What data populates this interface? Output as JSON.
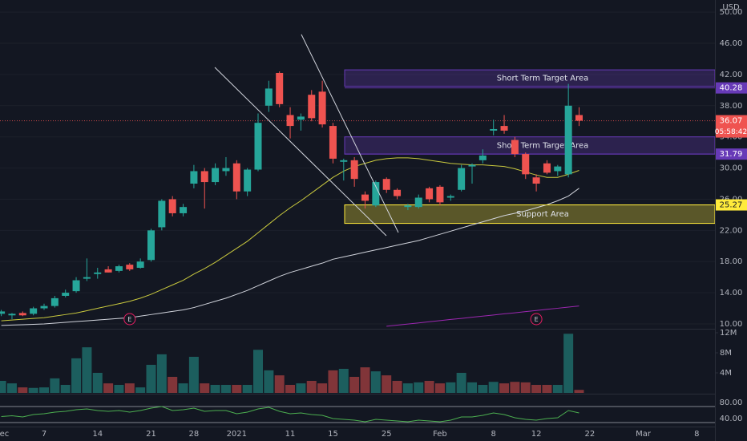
{
  "chart_data": [
    {
      "type": "candlestick",
      "currency": "USD",
      "categories": [
        "Dec",
        null,
        null,
        null,
        "7",
        null,
        null,
        null,
        null,
        "14",
        null,
        null,
        null,
        null,
        "21",
        null,
        null,
        null,
        "28",
        null,
        null,
        null,
        "2021",
        null,
        null,
        null,
        null,
        "11",
        null,
        null,
        null,
        "15",
        null,
        null,
        null,
        null,
        "25",
        null,
        null,
        null,
        null,
        "Feb",
        null,
        null,
        null,
        null,
        "8",
        null,
        null,
        null,
        "12",
        null,
        null,
        null,
        null,
        "22",
        null,
        null,
        null,
        null,
        "Mar",
        null,
        null,
        null,
        null,
        "8",
        null,
        null,
        null,
        null
      ],
      "open": [
        11.3,
        11.1,
        11.4,
        11.3,
        12.0,
        12.3,
        13.6,
        14.2,
        15.8,
        16.4,
        17.0,
        16.8,
        17.6,
        17.2,
        18.2,
        22.4,
        26.0,
        24.2,
        28.0,
        29.6,
        28.2,
        29.6,
        30.6,
        27.0,
        29.8,
        38.0,
        42.2,
        36.8,
        36.2,
        39.4,
        39.8,
        35.4,
        30.8,
        31.0,
        26.6,
        25.2,
        28.6,
        27.2,
        25.0,
        25.0,
        27.4,
        27.6,
        26.2,
        27.2,
        30.2,
        31.0,
        34.8,
        35.4,
        33.6,
        31.8,
        28.8,
        30.6,
        29.6,
        29.2,
        36.8,
        null,
        null,
        null,
        null,
        null,
        null,
        null,
        null,
        null,
        null,
        null,
        null,
        null,
        null,
        null
      ],
      "high": [
        11.8,
        11.4,
        11.6,
        12.2,
        12.6,
        13.6,
        14.4,
        16.0,
        18.4,
        17.2,
        17.4,
        17.6,
        17.8,
        18.4,
        22.2,
        26.0,
        26.4,
        25.4,
        30.4,
        30.0,
        30.6,
        31.4,
        31.0,
        30.0,
        37.0,
        41.2,
        42.4,
        37.8,
        37.0,
        40.0,
        41.2,
        35.8,
        31.2,
        31.4,
        27.0,
        28.4,
        28.8,
        27.4,
        25.4,
        26.6,
        27.6,
        27.8,
        26.6,
        30.4,
        30.6,
        32.4,
        36.2,
        36.8,
        34.0,
        32.0,
        29.2,
        31.0,
        30.4,
        40.8,
        37.8,
        null,
        null,
        null,
        null,
        null,
        null,
        null,
        null,
        null,
        null,
        null,
        null,
        null,
        null,
        null
      ],
      "low": [
        11.0,
        10.6,
        11.0,
        11.1,
        11.8,
        12.1,
        13.4,
        14.0,
        15.5,
        15.8,
        16.6,
        16.6,
        16.8,
        17.1,
        18.0,
        22.0,
        23.8,
        23.8,
        27.4,
        24.8,
        27.8,
        29.0,
        26.0,
        26.4,
        29.6,
        37.2,
        37.8,
        33.8,
        34.8,
        36.0,
        35.2,
        30.6,
        28.4,
        27.6,
        24.8,
        25.0,
        26.8,
        26.0,
        24.6,
        24.8,
        25.6,
        25.2,
        25.8,
        27.0,
        28.0,
        30.6,
        34.2,
        34.4,
        31.4,
        28.6,
        27.0,
        29.2,
        29.0,
        28.8,
        35.4,
        null,
        null,
        null,
        null,
        null,
        null,
        null,
        null,
        null,
        null,
        null,
        null,
        null,
        null,
        null
      ],
      "close": [
        11.6,
        11.3,
        11.1,
        12.0,
        12.3,
        13.3,
        14.0,
        15.6,
        16.0,
        16.6,
        16.6,
        17.4,
        17.0,
        18.0,
        22.0,
        25.8,
        24.2,
        25.0,
        29.6,
        28.2,
        30.0,
        30.0,
        27.0,
        29.8,
        35.8,
        40.2,
        38.2,
        35.4,
        36.6,
        36.4,
        35.6,
        31.2,
        31.0,
        28.6,
        25.8,
        28.2,
        27.2,
        26.4,
        25.2,
        26.2,
        26.0,
        25.6,
        26.4,
        30.0,
        30.4,
        31.6,
        35.0,
        34.8,
        31.8,
        29.2,
        28.0,
        29.4,
        30.2,
        38.0,
        36.07,
        null,
        null,
        null,
        null,
        null,
        null,
        null,
        null,
        null,
        null,
        null,
        null,
        null,
        null,
        null
      ],
      "up_color": "#26a69a",
      "down_color": "#ef5350",
      "ylim": [
        9.38,
        51.56
      ],
      "yticks": [
        {
          "value": 10,
          "label": "10.00"
        },
        {
          "value": 14,
          "label": "14.00"
        },
        {
          "value": 18,
          "label": "18.00"
        },
        {
          "value": 22,
          "label": "22.00"
        },
        {
          "value": 26,
          "label": "26.00"
        },
        {
          "value": 30,
          "label": "30.00"
        },
        {
          "value": 34,
          "label": "34.00"
        },
        {
          "value": 38,
          "label": "38.00"
        },
        {
          "value": 42,
          "label": "42.00"
        },
        {
          "value": 46,
          "label": "46.00"
        },
        {
          "value": 50,
          "label": "50.00"
        }
      ],
      "grid": true,
      "overlays": [
        {
          "color": "#c9c93e",
          "values": [
            10.4,
            10.5,
            10.6,
            10.7,
            10.8,
            11.0,
            11.2,
            11.4,
            11.7,
            12.0,
            12.3,
            12.6,
            12.9,
            13.3,
            13.8,
            14.4,
            15.0,
            15.6,
            16.4,
            17.1,
            17.9,
            18.8,
            19.7,
            20.6,
            21.7,
            22.8,
            23.9,
            24.9,
            25.8,
            26.8,
            27.8,
            28.8,
            29.6,
            30.2,
            30.6,
            31.0,
            31.2,
            31.3,
            31.3,
            31.2,
            31.0,
            30.8,
            30.6,
            30.5,
            30.4,
            30.4,
            30.3,
            30.2,
            29.9,
            29.5,
            29.1,
            28.8,
            28.8,
            29.2,
            29.7,
            null,
            null,
            null,
            null,
            null,
            null,
            null,
            null,
            null,
            null,
            null,
            null,
            null,
            null,
            null
          ]
        },
        {
          "color": "#d1d4dc",
          "values": [
            9.8,
            9.85,
            9.9,
            9.95,
            10.0,
            10.1,
            10.2,
            10.3,
            10.4,
            10.5,
            10.6,
            10.7,
            10.8,
            11.0,
            11.2,
            11.4,
            11.6,
            11.8,
            12.1,
            12.5,
            12.9,
            13.3,
            13.8,
            14.3,
            14.9,
            15.5,
            16.1,
            16.6,
            17.0,
            17.4,
            17.8,
            18.3,
            18.6,
            18.9,
            19.2,
            19.5,
            19.8,
            20.1,
            20.4,
            20.7,
            21.1,
            21.5,
            21.9,
            22.3,
            22.7,
            23.1,
            23.5,
            23.9,
            24.2,
            24.5,
            24.9,
            25.3,
            25.8,
            26.4,
            27.4,
            null,
            null,
            null,
            null,
            null,
            null,
            null,
            null,
            null,
            null,
            null,
            null,
            null,
            null,
            null
          ]
        },
        {
          "color": "#9c27b0",
          "values": [
            null,
            null,
            null,
            null,
            null,
            null,
            null,
            null,
            null,
            null,
            null,
            null,
            null,
            null,
            null,
            null,
            null,
            null,
            null,
            null,
            null,
            null,
            null,
            null,
            null,
            null,
            null,
            null,
            null,
            null,
            null,
            null,
            null,
            null,
            null,
            null,
            9.7,
            9.84,
            9.99,
            10.13,
            10.28,
            10.42,
            10.57,
            10.71,
            10.86,
            11.0,
            11.14,
            11.29,
            11.43,
            11.58,
            11.72,
            11.87,
            12.01,
            12.16,
            12.3,
            null,
            null,
            null,
            null,
            null,
            null,
            null,
            null,
            null,
            null,
            null,
            null,
            null,
            null,
            null
          ]
        }
      ],
      "zones": [
        {
          "top": 42.6,
          "bottom": 40.5,
          "label": "Short Term Target Area",
          "color": "#673ab7"
        },
        {
          "top": 34.0,
          "bottom": 31.79,
          "label": "Short Term Target Area",
          "color": "#673ab7"
        },
        {
          "top": 25.27,
          "bottom": 22.9,
          "label": "Support Area",
          "color": "#ffeb3b"
        }
      ],
      "price_lines": [
        {
          "value": 40.28,
          "label": "40.28",
          "color": "#673ab7",
          "text_color": "#ffffff"
        },
        {
          "value": 36.07,
          "label": "36.07",
          "color": "#ef5350",
          "text_color": "#ffffff",
          "dashed": true,
          "countdown": "05:58:42"
        },
        {
          "value": 31.79,
          "label": "31.79",
          "color": "#673ab7",
          "text_color": "#ffffff"
        },
        {
          "value": 25.27,
          "label": "25.27",
          "color": "#ffeb3b",
          "text_color": "#131722"
        }
      ],
      "earnings": [
        null,
        null,
        null,
        null,
        null,
        null,
        null,
        null,
        null,
        null,
        null,
        null,
        "E",
        null,
        null,
        null,
        null,
        null,
        null,
        null,
        null,
        null,
        null,
        null,
        null,
        null,
        null,
        null,
        null,
        null,
        null,
        null,
        null,
        null,
        null,
        null,
        null,
        null,
        null,
        null,
        null,
        null,
        null,
        null,
        null,
        null,
        null,
        null,
        null,
        null,
        "E",
        null,
        null,
        null,
        null,
        null,
        null,
        null,
        null,
        null,
        null,
        null,
        null,
        null,
        null,
        null,
        null,
        null,
        null,
        null
      ],
      "earnings_color": "#e91e63"
    },
    {
      "type": "bar",
      "values": [
        2.4,
        1.9,
        1.1,
        1.0,
        1.1,
        2.9,
        1.6,
        6.9,
        9.1,
        4.0,
        1.9,
        1.6,
        1.9,
        1.1,
        5.6,
        7.7,
        3.2,
        1.9,
        7.2,
        1.9,
        1.6,
        1.6,
        1.6,
        1.6,
        8.6,
        4.5,
        3.5,
        1.6,
        1.9,
        2.4,
        1.9,
        4.5,
        4.8,
        3.2,
        5.1,
        4.3,
        3.5,
        2.4,
        1.9,
        2.1,
        2.4,
        1.9,
        2.1,
        4.0,
        2.1,
        1.6,
        2.2,
        1.9,
        2.2,
        2.1,
        1.6,
        1.6,
        1.6,
        11.8,
        0.6,
        null,
        null,
        null,
        null,
        null,
        null,
        null,
        null,
        null,
        null,
        null,
        null,
        null,
        null,
        null
      ],
      "up_color": "#26a69a",
      "down_color": "#ef5350",
      "ylim": [
        0,
        12.8
      ],
      "yticks": [
        {
          "value": 4,
          "label": "4M"
        },
        {
          "value": 8,
          "label": "8M"
        },
        {
          "value": 12,
          "label": "12M"
        }
      ]
    },
    {
      "type": "line",
      "values": [
        55,
        57,
        54,
        60,
        62,
        66,
        68,
        72,
        74,
        70,
        68,
        70,
        66,
        70,
        76,
        80,
        70,
        72,
        76,
        68,
        70,
        70,
        62,
        66,
        74,
        78,
        68,
        62,
        64,
        60,
        58,
        50,
        48,
        46,
        42,
        48,
        46,
        44,
        42,
        46,
        44,
        42,
        46,
        54,
        54,
        58,
        64,
        60,
        52,
        48,
        46,
        50,
        52,
        70,
        64,
        null,
        null,
        null,
        null,
        null,
        null,
        null,
        null,
        null,
        null,
        null,
        null,
        null,
        null,
        null
      ],
      "color": "#4caf50",
      "ylim": [
        30,
        110
      ],
      "yticks": [
        {
          "value": 40,
          "label": "40.00"
        },
        {
          "value": 80,
          "label": "80.00"
        }
      ]
    }
  ]
}
